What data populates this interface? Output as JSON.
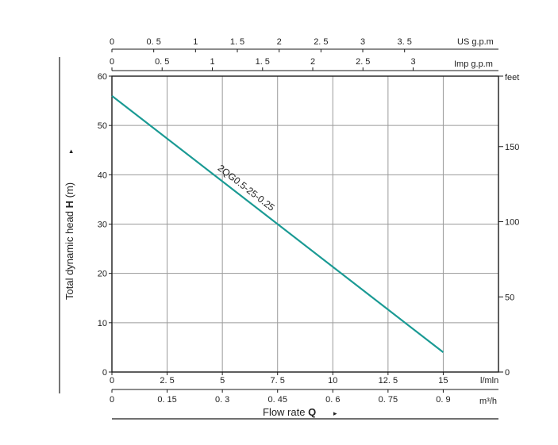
{
  "chart_data": {
    "type": "line",
    "title": "",
    "series": [
      {
        "name": "2QG0.5-25-0.25",
        "x": [
          0,
          15
        ],
        "y": [
          56,
          4
        ]
      }
    ],
    "primary_x": {
      "label": "l/mln",
      "range": [
        0,
        17.5
      ],
      "ticks": [
        0,
        2.5,
        5,
        7.5,
        10,
        12.5,
        15
      ],
      "tick_labels": [
        "0",
        "2. 5",
        "5",
        "7. 5",
        "10",
        "12. 5",
        "15"
      ]
    },
    "m3h_axis": {
      "label": "m³/h",
      "tick_labels": [
        "0",
        "0. 15",
        "0. 3",
        "0. 45",
        "0. 6",
        "0. 75",
        "0. 9"
      ]
    },
    "us_gpm_axis": {
      "label": "US g.p.m",
      "tick_labels": [
        "0",
        "0. 5",
        "1",
        "1. 5",
        "2",
        "2. 5",
        "3",
        "3. 5"
      ],
      "tick_values_lmin": [
        0,
        1.893,
        3.785,
        5.678,
        7.571,
        9.464,
        11.356,
        13.249
      ]
    },
    "imp_gpm_axis": {
      "label": "Imp g.p.m",
      "tick_labels": [
        "0",
        "0. 5",
        "1",
        "1. 5",
        "2",
        "2. 5",
        "3"
      ],
      "tick_values_lmin": [
        0,
        2.273,
        4.546,
        6.819,
        9.092,
        11.365,
        13.638
      ]
    },
    "y_axis": {
      "label_prefix": "Total dynamic head ",
      "label_bold": "H",
      "label_suffix": " (m)",
      "range": [
        0,
        60
      ],
      "ticks": [
        0,
        10,
        20,
        30,
        40,
        50,
        60
      ],
      "tick_labels": [
        "0",
        "10",
        "20",
        "30",
        "40",
        "50",
        "60"
      ]
    },
    "feet_axis": {
      "label": "feet",
      "tick_labels": [
        "0",
        "50",
        "100",
        "150"
      ],
      "tick_values_m": [
        0,
        15.24,
        30.48,
        45.72
      ]
    },
    "x_title": {
      "prefix": "Flow rate ",
      "bold": "Q"
    },
    "arrow_glyph": "▸",
    "grid": true
  },
  "colors": {
    "curve": "#1a9a94",
    "grid": "#9a9a9a",
    "frame": "#1a1a1a",
    "text": "#222222"
  }
}
